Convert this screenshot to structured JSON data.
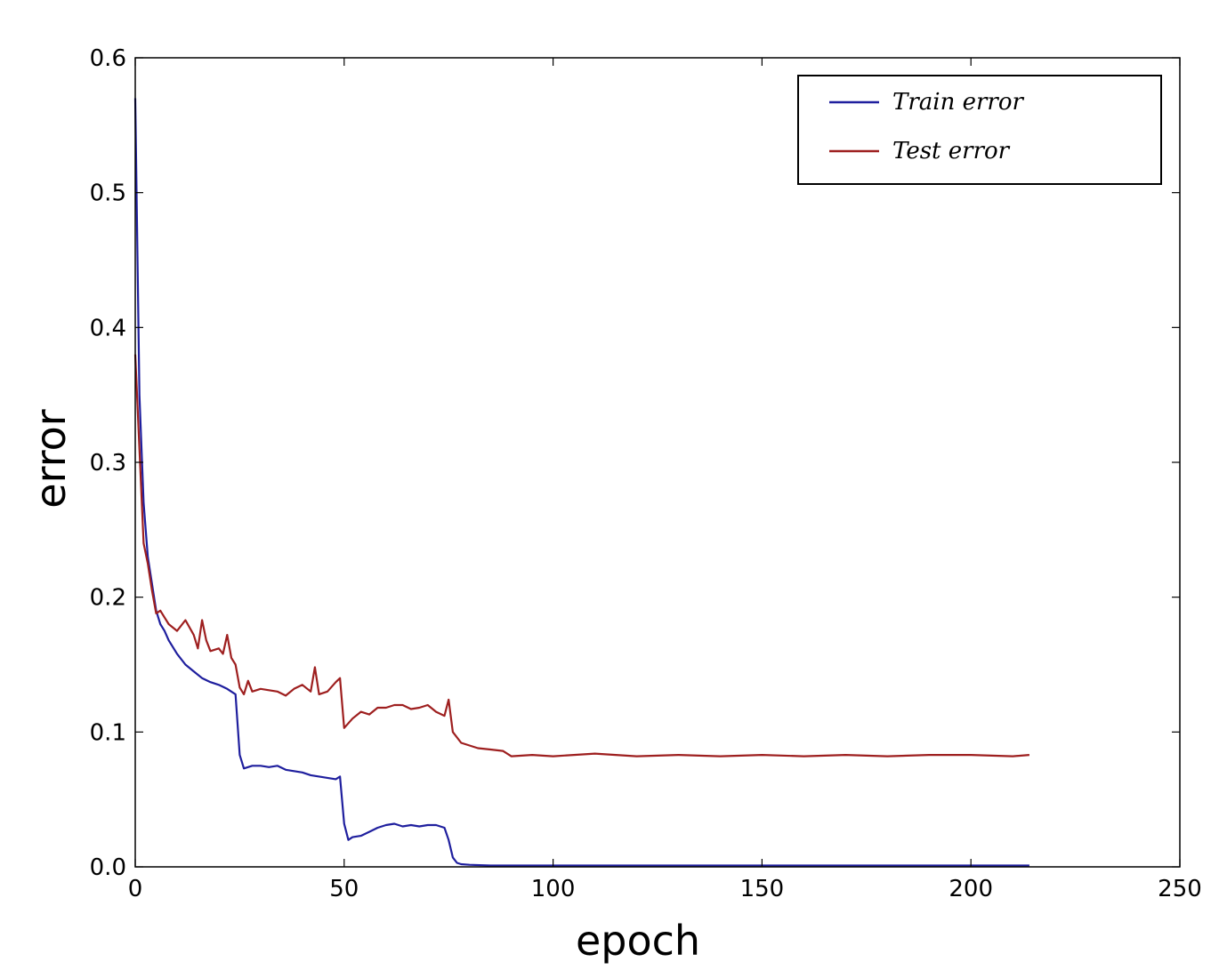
{
  "chart_data": {
    "type": "line",
    "title": "",
    "xlabel": "epoch",
    "ylabel": "error",
    "xlim": [
      0,
      250
    ],
    "ylim": [
      0,
      0.6
    ],
    "xticks": [
      0,
      50,
      100,
      150,
      200,
      250
    ],
    "yticks": [
      0.0,
      0.1,
      0.2,
      0.3,
      0.4,
      0.5,
      0.6
    ],
    "xtick_labels": [
      "0",
      "50",
      "100",
      "150",
      "200",
      "250"
    ],
    "ytick_labels": [
      "0.0",
      "0.1",
      "0.2",
      "0.3",
      "0.4",
      "0.5",
      "0.6"
    ],
    "grid": false,
    "legend_position": "top-right",
    "series": [
      {
        "name": "Train error",
        "color": "#1f1f9e",
        "x": [
          0,
          1,
          2,
          3,
          4,
          5,
          6,
          7,
          8,
          9,
          10,
          12,
          14,
          16,
          18,
          20,
          22,
          24,
          25,
          26,
          28,
          30,
          32,
          34,
          36,
          38,
          40,
          42,
          44,
          46,
          48,
          49,
          50,
          51,
          52,
          54,
          56,
          58,
          60,
          62,
          64,
          66,
          68,
          70,
          72,
          74,
          75,
          76,
          77,
          78,
          80,
          85,
          90,
          100,
          150,
          214
        ],
        "values": [
          0.57,
          0.35,
          0.27,
          0.23,
          0.21,
          0.19,
          0.18,
          0.175,
          0.168,
          0.163,
          0.158,
          0.15,
          0.145,
          0.14,
          0.137,
          0.135,
          0.132,
          0.128,
          0.083,
          0.073,
          0.075,
          0.075,
          0.074,
          0.075,
          0.072,
          0.071,
          0.07,
          0.068,
          0.067,
          0.066,
          0.065,
          0.067,
          0.032,
          0.02,
          0.022,
          0.023,
          0.026,
          0.029,
          0.031,
          0.032,
          0.03,
          0.031,
          0.03,
          0.031,
          0.031,
          0.029,
          0.02,
          0.007,
          0.003,
          0.002,
          0.0015,
          0.001,
          0.001,
          0.001,
          0.001,
          0.001
        ]
      },
      {
        "name": "Test error",
        "color": "#9e1f1f",
        "x": [
          0,
          1,
          2,
          3,
          4,
          5,
          6,
          7,
          8,
          10,
          12,
          14,
          15,
          16,
          17,
          18,
          20,
          21,
          22,
          23,
          24,
          25,
          26,
          27,
          28,
          30,
          32,
          34,
          36,
          38,
          40,
          42,
          43,
          44,
          46,
          48,
          49,
          50,
          52,
          54,
          56,
          58,
          60,
          62,
          64,
          66,
          68,
          70,
          72,
          74,
          75,
          76,
          78,
          80,
          82,
          85,
          88,
          90,
          95,
          100,
          110,
          120,
          130,
          140,
          150,
          160,
          170,
          180,
          190,
          200,
          210,
          214
        ],
        "values": [
          0.38,
          0.31,
          0.24,
          0.225,
          0.205,
          0.188,
          0.19,
          0.185,
          0.18,
          0.175,
          0.183,
          0.172,
          0.162,
          0.183,
          0.168,
          0.16,
          0.162,
          0.158,
          0.172,
          0.155,
          0.15,
          0.133,
          0.128,
          0.138,
          0.13,
          0.132,
          0.131,
          0.13,
          0.127,
          0.132,
          0.135,
          0.13,
          0.148,
          0.128,
          0.13,
          0.137,
          0.14,
          0.103,
          0.11,
          0.115,
          0.113,
          0.118,
          0.118,
          0.12,
          0.12,
          0.117,
          0.118,
          0.12,
          0.115,
          0.112,
          0.124,
          0.1,
          0.092,
          0.09,
          0.088,
          0.087,
          0.086,
          0.082,
          0.083,
          0.082,
          0.084,
          0.082,
          0.083,
          0.082,
          0.083,
          0.082,
          0.083,
          0.082,
          0.083,
          0.083,
          0.082,
          0.083
        ]
      }
    ]
  }
}
